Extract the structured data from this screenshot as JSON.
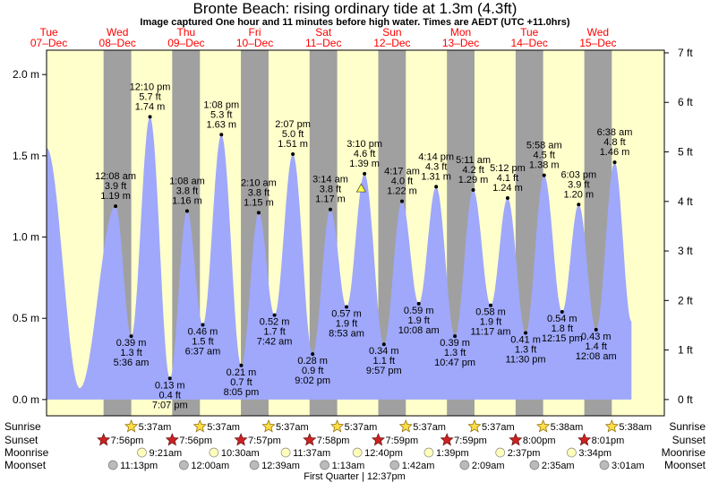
{
  "chart_data": {
    "type": "area",
    "title": "Bronte Beach: rising  ordinary tide at 1.3m (4.3ft)",
    "subtitle": "Image captured One hour and 11 minutes before high water. Times are AEDT (UTC +11.0hrs)",
    "days": [
      {
        "dow": "Tue",
        "date": "07–Dec"
      },
      {
        "dow": "Wed",
        "date": "08–Dec"
      },
      {
        "dow": "Thu",
        "date": "09–Dec"
      },
      {
        "dow": "Fri",
        "date": "10–Dec"
      },
      {
        "dow": "Sat",
        "date": "11–Dec"
      },
      {
        "dow": "Sun",
        "date": "12–Dec"
      },
      {
        "dow": "Mon",
        "date": "13–Dec"
      },
      {
        "dow": "Tue",
        "date": "14–Dec"
      },
      {
        "dow": "Wed",
        "date": "15–Dec"
      }
    ],
    "y_left_ticks": [
      {
        "v": 0,
        "label": "0.0 m"
      },
      {
        "v": 0.5,
        "label": "0.5 m"
      },
      {
        "v": 1.0,
        "label": "1.0 m"
      },
      {
        "v": 1.5,
        "label": "1.5 m"
      },
      {
        "v": 2.0,
        "label": "2.0 m"
      }
    ],
    "y_right_ticks": [
      {
        "ft": 0,
        "label": "0 ft"
      },
      {
        "ft": 1,
        "label": "1 ft"
      },
      {
        "ft": 2,
        "label": "2 ft"
      },
      {
        "ft": 3,
        "label": "3 ft"
      },
      {
        "ft": 4,
        "label": "4 ft"
      },
      {
        "ft": 5,
        "label": "5 ft"
      },
      {
        "ft": 6,
        "label": "6 ft"
      },
      {
        "ft": 7,
        "label": "7 ft"
      }
    ],
    "ylim": [
      -0.1,
      2.15
    ],
    "x_range_hours": [
      0,
      216
    ],
    "nights": [
      {
        "start": 19.93,
        "end": 29.62
      },
      {
        "start": 43.93,
        "end": 53.62
      },
      {
        "start": 67.95,
        "end": 77.62
      },
      {
        "start": 91.97,
        "end": 101.62
      },
      {
        "start": 115.98,
        "end": 125.62
      },
      {
        "start": 139.98,
        "end": 149.62
      },
      {
        "start": 164.0,
        "end": 173.63
      },
      {
        "start": 188.02,
        "end": 197.63
      }
    ],
    "tides": [
      {
        "h": 24.13,
        "m": 1.19,
        "time": "12:08 am",
        "ft": "3.9 ft",
        "mlabel": "1.19 m",
        "type": "high"
      },
      {
        "h": 29.6,
        "m": 0.39,
        "time": "5:36 am",
        "ft": "1.3 ft",
        "mlabel": "0.39 m",
        "type": "low"
      },
      {
        "h": 36.17,
        "m": 1.74,
        "time": "12:10 pm",
        "ft": "5.7 ft",
        "mlabel": "1.74 m",
        "type": "high"
      },
      {
        "h": 43.12,
        "m": 0.13,
        "time": "7:07 pm",
        "ft": "0.4 ft",
        "mlabel": "0.13 m",
        "type": "low"
      },
      {
        "h": 49.13,
        "m": 1.16,
        "time": "1:08 am",
        "ft": "3.8 ft",
        "mlabel": "1.16 m",
        "type": "high"
      },
      {
        "h": 54.62,
        "m": 0.46,
        "time": "6:37 am",
        "ft": "1.5 ft",
        "mlabel": "0.46 m",
        "type": "low"
      },
      {
        "h": 61.13,
        "m": 1.63,
        "time": "1:08 pm",
        "ft": "5.3 ft",
        "mlabel": "1.63 m",
        "type": "high"
      },
      {
        "h": 68.08,
        "m": 0.21,
        "time": "8:05 pm",
        "ft": "0.7 ft",
        "mlabel": "0.21 m",
        "type": "low"
      },
      {
        "h": 74.17,
        "m": 1.15,
        "time": "2:10 am",
        "ft": "3.8 ft",
        "mlabel": "1.15 m",
        "type": "high"
      },
      {
        "h": 79.7,
        "m": 0.52,
        "time": "7:42 am",
        "ft": "1.7 ft",
        "mlabel": "0.52 m",
        "type": "low"
      },
      {
        "h": 86.12,
        "m": 1.51,
        "time": "2:07 pm",
        "ft": "5.0 ft",
        "mlabel": "1.51 m",
        "type": "high"
      },
      {
        "h": 93.03,
        "m": 0.28,
        "time": "9:02 pm",
        "ft": "0.9 ft",
        "mlabel": "0.28 m",
        "type": "low"
      },
      {
        "h": 99.23,
        "m": 1.17,
        "time": "3:14 am",
        "ft": "3.8 ft",
        "mlabel": "1.17 m",
        "type": "high"
      },
      {
        "h": 104.88,
        "m": 0.57,
        "time": "8:53 am",
        "ft": "1.9 ft",
        "mlabel": "0.57 m",
        "type": "low"
      },
      {
        "h": 111.17,
        "m": 1.39,
        "time": "3:10 pm",
        "ft": "4.6 ft",
        "mlabel": "1.39 m",
        "type": "high"
      },
      {
        "h": 117.95,
        "m": 0.34,
        "time": "9:57 pm",
        "ft": "1.1 ft",
        "mlabel": "0.34 m",
        "type": "low"
      },
      {
        "h": 124.28,
        "m": 1.22,
        "time": "4:17 am",
        "ft": "4.0 ft",
        "mlabel": "1.22 m",
        "type": "high"
      },
      {
        "h": 130.13,
        "m": 0.59,
        "time": "10:08 am",
        "ft": "1.9 ft",
        "mlabel": "0.59 m",
        "type": "low"
      },
      {
        "h": 136.23,
        "m": 1.31,
        "time": "4:14 pm",
        "ft": "4.3 ft",
        "mlabel": "1.31 m",
        "type": "high"
      },
      {
        "h": 142.78,
        "m": 0.39,
        "time": "10:47 pm",
        "ft": "1.3 ft",
        "mlabel": "0.39 m",
        "type": "low"
      },
      {
        "h": 149.18,
        "m": 1.29,
        "time": "5:11 am",
        "ft": "4.2 ft",
        "mlabel": "1.29 m",
        "type": "high"
      },
      {
        "h": 155.28,
        "m": 0.58,
        "time": "11:17 am",
        "ft": "1.9 ft",
        "mlabel": "0.58 m",
        "type": "low"
      },
      {
        "h": 161.2,
        "m": 1.24,
        "time": "5:12 pm",
        "ft": "4.1 ft",
        "mlabel": "1.24 m",
        "type": "high"
      },
      {
        "h": 167.5,
        "m": 0.41,
        "time": "11:30 pm",
        "ft": "1.3 ft",
        "mlabel": "0.41 m",
        "type": "low"
      },
      {
        "h": 173.97,
        "m": 1.38,
        "time": "5:58 am",
        "ft": "4.5 ft",
        "mlabel": "1.38 m",
        "type": "high"
      },
      {
        "h": 180.25,
        "m": 0.54,
        "time": "12:15 pm",
        "ft": "1.8 ft",
        "mlabel": "0.54 m",
        "type": "low"
      },
      {
        "h": 186.05,
        "m": 1.2,
        "time": "6:03 pm",
        "ft": "3.9 ft",
        "mlabel": "1.20 m",
        "type": "high"
      },
      {
        "h": 192.13,
        "m": 0.43,
        "time": "12:08 am",
        "ft": "1.4 ft",
        "mlabel": "0.43 m",
        "type": "low"
      },
      {
        "h": 198.63,
        "m": 1.46,
        "time": "6:38 am",
        "ft": "4.8 ft",
        "mlabel": "1.46 m",
        "type": "high"
      }
    ],
    "curve_start": {
      "h": 0,
      "m": 1.55
    },
    "curve_end": {
      "h": 204.5,
      "m": 0.48
    },
    "curve_anchor_low": {
      "h": 11.6,
      "m": 0.07
    },
    "current_marker": {
      "h": 110.0,
      "m": 1.3
    },
    "colors": {
      "day_bg": "#ffffcc",
      "night_bg": "#a0a0a0",
      "water": "#9fa8fb",
      "day_label": "#ff0000",
      "marker_fill": "#ffff44"
    },
    "sun_moon": {
      "sunrise": [
        {
          "h": 29.62,
          "label": "5:37am"
        },
        {
          "h": 53.62,
          "label": "5:37am"
        },
        {
          "h": 77.62,
          "label": "5:37am"
        },
        {
          "h": 101.62,
          "label": "5:37am"
        },
        {
          "h": 125.62,
          "label": "5:37am"
        },
        {
          "h": 149.62,
          "label": "5:37am"
        },
        {
          "h": 173.63,
          "label": "5:38am"
        },
        {
          "h": 197.63,
          "label": "5:38am"
        }
      ],
      "sunset": [
        {
          "h": 19.93,
          "label": "7:56pm"
        },
        {
          "h": 43.93,
          "label": "7:56pm"
        },
        {
          "h": 67.95,
          "label": "7:57pm"
        },
        {
          "h": 91.97,
          "label": "7:58pm"
        },
        {
          "h": 115.98,
          "label": "7:59pm"
        },
        {
          "h": 139.98,
          "label": "7:59pm"
        },
        {
          "h": 164.0,
          "label": "8:00pm"
        },
        {
          "h": 188.02,
          "label": "8:01pm"
        }
      ],
      "moonrise": [
        {
          "h": 33.35,
          "label": "9:21am"
        },
        {
          "h": 58.5,
          "label": "10:30am"
        },
        {
          "h": 83.62,
          "label": "11:37am"
        },
        {
          "h": 108.67,
          "label": "12:40pm"
        },
        {
          "h": 133.65,
          "label": "1:39pm"
        },
        {
          "h": 158.62,
          "label": "2:37pm"
        },
        {
          "h": 183.57,
          "label": "3:34pm"
        }
      ],
      "moonset": [
        {
          "h": 23.22,
          "label": "11:13pm"
        },
        {
          "h": 48.0,
          "label": "12:00am"
        },
        {
          "h": 72.65,
          "label": "12:39am"
        },
        {
          "h": 97.22,
          "label": "1:13am"
        },
        {
          "h": 121.7,
          "label": "1:42am"
        },
        {
          "h": 146.15,
          "label": "2:09am"
        },
        {
          "h": 170.58,
          "label": "2:35am"
        },
        {
          "h": 195.02,
          "label": "3:01am"
        }
      ],
      "row_labels": {
        "sunrise": "Sunrise",
        "sunset": "Sunset",
        "moonrise": "Moonrise",
        "moonset": "Moonset"
      },
      "moon_phase": "First Quarter | 12:37pm"
    }
  }
}
